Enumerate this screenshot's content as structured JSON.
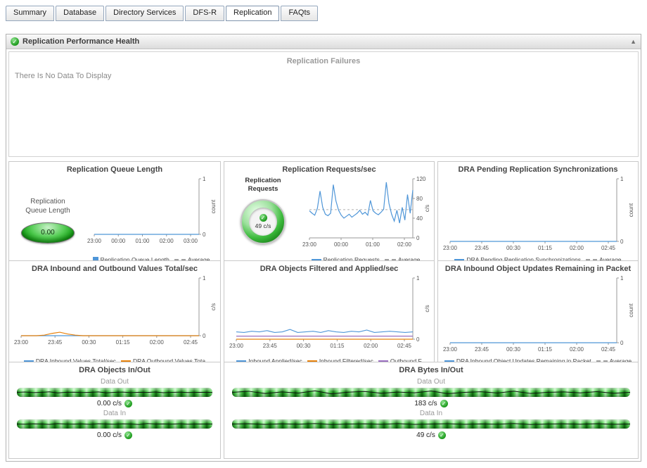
{
  "tabs": {
    "items": [
      {
        "label": "Summary",
        "active": false
      },
      {
        "label": "Database",
        "active": false
      },
      {
        "label": "Directory Services",
        "active": false
      },
      {
        "label": "DFS-R",
        "active": false
      },
      {
        "label": "Replication",
        "active": true
      },
      {
        "label": "FAQts",
        "active": false
      }
    ]
  },
  "panel": {
    "title": "Replication Performance Health",
    "status_icon": "check-circle",
    "collapse_icon": "chevron-up"
  },
  "failures": {
    "title": "Replication Failures",
    "message": "There Is No Data To Display"
  },
  "colors": {
    "blue": "#4f96d8",
    "orange": "#e8820c",
    "purple": "#9a6fc0",
    "green": "#2eab2e",
    "average": "#b0b0b0"
  },
  "gauges": {
    "queue_length": {
      "label": "Replication Queue Length",
      "value": "0.00"
    },
    "requests": {
      "label": "Replication Requests",
      "value": "49 c/s"
    }
  },
  "chart_data": [
    {
      "id": "queue",
      "type": "line",
      "title": "Replication Queue Length",
      "x_labels": [
        "23:00",
        "00:00",
        "01:00",
        "02:00",
        "03:00"
      ],
      "y_ticks": [
        0,
        1
      ],
      "y_max": 1,
      "y_label": "count",
      "show_average": true,
      "average_label": "Average",
      "series": [
        {
          "name": "Replication Queue Length",
          "color": "blue",
          "swatch": "square",
          "values": [
            0,
            0,
            0,
            0,
            0,
            0,
            0,
            0,
            0,
            0,
            0,
            0,
            0,
            0,
            0,
            0,
            0,
            0,
            0,
            0,
            0,
            0,
            0,
            0
          ]
        }
      ]
    },
    {
      "id": "requests",
      "type": "line",
      "title": "Replication Requests/sec",
      "x_labels": [
        "23:00",
        "00:00",
        "01:00",
        "02:00"
      ],
      "y_ticks": [
        0,
        40,
        80,
        120
      ],
      "y_max": 120,
      "y_label": "c/s",
      "show_average": true,
      "average_label": "Average",
      "series": [
        {
          "name": "Replication Requests",
          "color": "blue",
          "swatch": "line",
          "values": [
            55,
            50,
            46,
            60,
            95,
            62,
            48,
            45,
            50,
            108,
            75,
            56,
            46,
            40,
            44,
            48,
            42,
            46,
            50,
            56,
            48,
            52,
            46,
            76,
            55,
            50,
            47,
            52,
            58,
            113,
            70,
            48,
            34,
            56,
            30,
            62,
            36,
            88,
            50,
            97
          ]
        }
      ]
    },
    {
      "id": "pending",
      "type": "line",
      "title": "DRA Pending Replication Synchronizations",
      "x_labels": [
        "23:00",
        "23:45",
        "00:30",
        "01:15",
        "02:00",
        "02:45"
      ],
      "y_ticks": [
        0,
        1
      ],
      "y_max": 1,
      "y_label": "count",
      "show_average": true,
      "average_label": "Average",
      "series": [
        {
          "name": "DRA Pending Replication Synchronizations",
          "color": "blue",
          "swatch": "line",
          "values": [
            0,
            0,
            0,
            0,
            0,
            0,
            0,
            0,
            0,
            0,
            0,
            0,
            0,
            0,
            0,
            0,
            0,
            0,
            0,
            0,
            0,
            0,
            0,
            0
          ]
        }
      ]
    },
    {
      "id": "inout_values",
      "type": "line",
      "title": "DRA Inbound and Outbound Values Total/sec",
      "x_labels": [
        "23:00",
        "23:45",
        "00:30",
        "01:15",
        "02:00",
        "02:45"
      ],
      "y_ticks": [
        0,
        1
      ],
      "y_max": 1,
      "y_label": "c/s",
      "show_average": false,
      "average_label": "Average",
      "series": [
        {
          "name": "DRA Inbound Values Total/sec",
          "color": "blue",
          "swatch": "line",
          "values": [
            0,
            0,
            0,
            0,
            0,
            0,
            0,
            0,
            0,
            0,
            0,
            0,
            0,
            0,
            0,
            0,
            0,
            0,
            0,
            0,
            0,
            0,
            0,
            0
          ]
        },
        {
          "name": "DRA Outbound Values Tota",
          "color": "orange",
          "swatch": "line",
          "values": [
            0,
            0,
            0,
            0.01,
            0.04,
            0.06,
            0.03,
            0.01,
            0,
            0,
            0,
            0,
            0,
            0,
            0,
            0,
            0,
            0,
            0,
            0,
            0,
            0,
            0,
            0
          ]
        }
      ]
    },
    {
      "id": "filtered_applied",
      "type": "line",
      "title": "DRA Objects Filtered and Applied/sec",
      "x_labels": [
        "23:00",
        "23:45",
        "00:30",
        "01:15",
        "02:00",
        "02:45"
      ],
      "y_ticks": [
        0,
        1
      ],
      "y_max": 1,
      "y_label": "c/s",
      "show_average": false,
      "average_label": "Average",
      "series": [
        {
          "name": "Inbound Applied/sec",
          "color": "blue",
          "swatch": "line",
          "values": [
            0.12,
            0.11,
            0.13,
            0.12,
            0.14,
            0.11,
            0.12,
            0.16,
            0.11,
            0.12,
            0.13,
            0.11,
            0.14,
            0.12,
            0.11,
            0.13,
            0.12,
            0.15,
            0.11,
            0.12,
            0.13,
            0.12,
            0.11,
            0.12
          ]
        },
        {
          "name": "Inbound Filtered/sec",
          "color": "orange",
          "swatch": "line",
          "values": [
            0,
            0,
            0,
            0,
            0,
            0,
            0,
            0,
            0,
            0,
            0,
            0,
            0,
            0,
            0,
            0,
            0,
            0,
            0,
            0,
            0,
            0,
            0,
            0
          ]
        },
        {
          "name": "Outbound F",
          "color": "purple",
          "swatch": "line",
          "values": [
            0.05,
            0.05,
            0.05,
            0.05,
            0.05,
            0.05,
            0.05,
            0.05,
            0.05,
            0.05,
            0.05,
            0.05,
            0.05,
            0.05,
            0.05,
            0.05,
            0.05,
            0.05,
            0.05,
            0.05,
            0.05,
            0.05,
            0.05,
            0.05
          ]
        }
      ]
    },
    {
      "id": "updates_remaining",
      "type": "line",
      "title": "DRA Inbound Object Updates Remaining in Packet",
      "x_labels": [
        "23:00",
        "23:45",
        "00:30",
        "01:15",
        "02:00",
        "02:45"
      ],
      "y_ticks": [
        0,
        1
      ],
      "y_max": 1,
      "y_label": "count",
      "show_average": true,
      "average_label": "Average",
      "series": [
        {
          "name": "DRA Inbound Object Updates Remaining in Packet",
          "color": "blue",
          "swatch": "line",
          "values": [
            0,
            0,
            0,
            0,
            0,
            0,
            0,
            0,
            0,
            0,
            0,
            0,
            0,
            0,
            0,
            0,
            0,
            0,
            0,
            0,
            0,
            0,
            0,
            0
          ]
        }
      ]
    }
  ],
  "meters": {
    "objects": {
      "title": "DRA Objects In/Out",
      "rows": [
        {
          "label": "Data Out",
          "value": "0.00 c/s",
          "spark": [
            0.5,
            0.54,
            0.47,
            0.5,
            0.56,
            0.44,
            0.5,
            0.52,
            0.48,
            0.5,
            0.55,
            0.45,
            0.5,
            0.53,
            0.47,
            0.51,
            0.49,
            0.54,
            0.46,
            0.5,
            0.52,
            0.48,
            0.5,
            0.51,
            0.49
          ]
        },
        {
          "label": "Data In",
          "value": "0.00 c/s",
          "spark": [
            0.5,
            0.48,
            0.52,
            0.5,
            0.46,
            0.54,
            0.5,
            0.49,
            0.51,
            0.47,
            0.53,
            0.5,
            0.48,
            0.52,
            0.5,
            0.45,
            0.55,
            0.5,
            0.51,
            0.49,
            0.52,
            0.48,
            0.5,
            0.5,
            0.5
          ]
        }
      ]
    },
    "bytes": {
      "title": "DRA Bytes In/Out",
      "rows": [
        {
          "label": "Data Out",
          "value": "183 c/s",
          "spark": [
            0.5,
            0.62,
            0.38,
            0.55,
            0.42,
            0.66,
            0.34,
            0.52,
            0.6,
            0.4,
            0.53,
            0.45,
            0.64,
            0.36,
            0.5,
            0.57,
            0.43,
            0.62,
            0.38,
            0.5,
            0.55,
            0.44,
            0.58,
            0.4,
            0.5
          ]
        },
        {
          "label": "Data In",
          "value": "49 c/s",
          "spark": [
            0.5,
            0.53,
            0.46,
            0.52,
            0.48,
            0.55,
            0.45,
            0.5,
            0.52,
            0.47,
            0.54,
            0.46,
            0.5,
            0.53,
            0.47,
            0.51,
            0.48,
            0.55,
            0.45,
            0.5,
            0.52,
            0.48,
            0.53,
            0.47,
            0.5
          ]
        }
      ]
    }
  }
}
